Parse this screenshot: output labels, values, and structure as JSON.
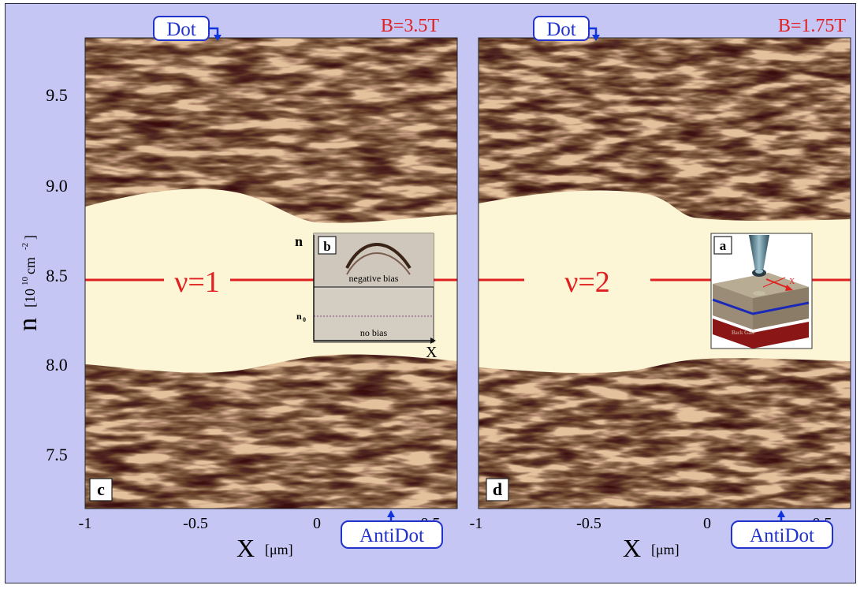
{
  "figure": {
    "y_axis": {
      "label_main": "n",
      "label_unit": "[10",
      "label_exp": "10",
      "label_unit2": "cm",
      "label_exp2": "-2",
      "label_close": "]",
      "ticks": [
        "9.5",
        "9.0",
        "8.5",
        "8.0",
        "7.5"
      ]
    },
    "panels": [
      {
        "id": "c",
        "panel_label": "c",
        "field_label": "B=3.5T",
        "filling_label": "ν=1",
        "dot_label": "Dot",
        "antidot_label": "AntiDot",
        "x_ticks": [
          "-1",
          "-0.5",
          "0",
          "0.5"
        ],
        "x_axis_label": "X",
        "x_axis_unit": "[μm]",
        "inset": {
          "label": "b",
          "axis_n": "n",
          "axis_x": "X",
          "n0_label": "n",
          "n0_sub": "0",
          "top_text": "negative bias",
          "bottom_text": "no bias"
        }
      },
      {
        "id": "d",
        "panel_label": "d",
        "field_label": "B=1.75T",
        "filling_label": "ν=2",
        "dot_label": "Dot",
        "antidot_label": "AntiDot",
        "x_ticks": [
          "-1",
          "-0.5",
          "0",
          "0.5"
        ],
        "x_axis_label": "X",
        "x_axis_unit": "[μm]",
        "inset": {
          "label": "a",
          "axis_x": "X",
          "backgate_text": "Back Gate"
        }
      }
    ],
    "colors": {
      "background": "#c6c6f4",
      "field_label": "#e02020",
      "filling_line": "#e02020",
      "callout_border": "#2233cc",
      "callout_arrow": "#1133dd",
      "gap_region": "#fdf6d6",
      "pattern_dark": "#3a1008",
      "pattern_mid": "#b87858"
    }
  }
}
